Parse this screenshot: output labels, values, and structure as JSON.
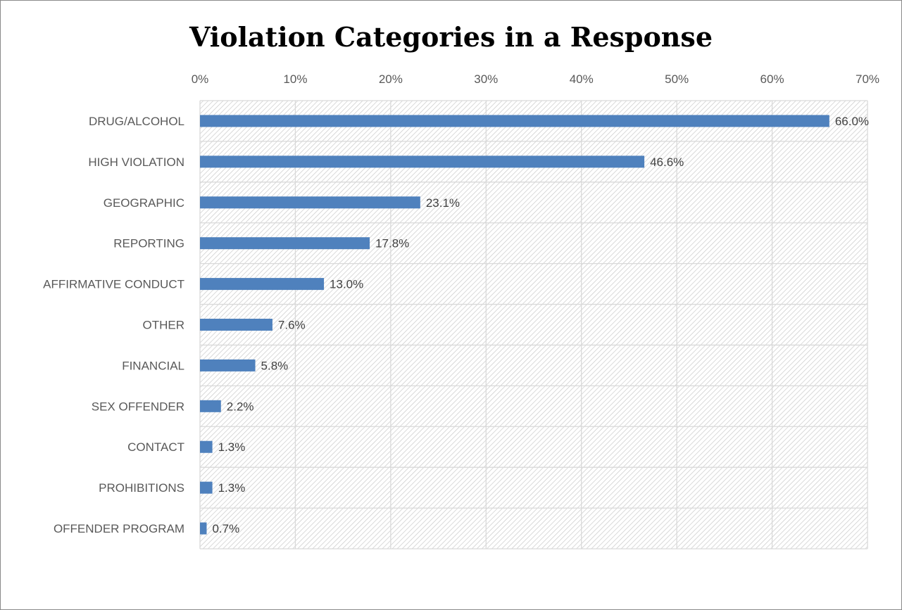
{
  "chart_data": {
    "type": "bar",
    "orientation": "horizontal",
    "title": "Violation Categories in a Response",
    "categories": [
      "DRUG/ALCOHOL",
      "HIGH VIOLATION",
      "GEOGRAPHIC",
      "REPORTING",
      "AFFIRMATIVE CONDUCT",
      "OTHER",
      "FINANCIAL",
      "SEX OFFENDER",
      "CONTACT",
      "PROHIBITIONS",
      "OFFENDER PROGRAM"
    ],
    "values": [
      66.0,
      46.6,
      23.1,
      17.8,
      13.0,
      7.6,
      5.8,
      2.2,
      1.3,
      1.3,
      0.7
    ],
    "data_labels": [
      "66.0%",
      "46.6%",
      "23.1%",
      "17.8%",
      "13.0%",
      "7.6%",
      "5.8%",
      "2.2%",
      "1.3%",
      "1.3%",
      "0.7%"
    ],
    "xlim": [
      0,
      70
    ],
    "x_ticks": [
      0,
      10,
      20,
      30,
      40,
      50,
      60,
      70
    ],
    "x_tick_labels": [
      "0%",
      "10%",
      "20%",
      "30%",
      "40%",
      "50%",
      "60%",
      "70%"
    ],
    "x_axis_position": "top",
    "xlabel": "",
    "ylabel": "",
    "grid": true,
    "legend": "none",
    "bar_color": "#4f81bd",
    "plot_background": "diagonal-hatch"
  }
}
